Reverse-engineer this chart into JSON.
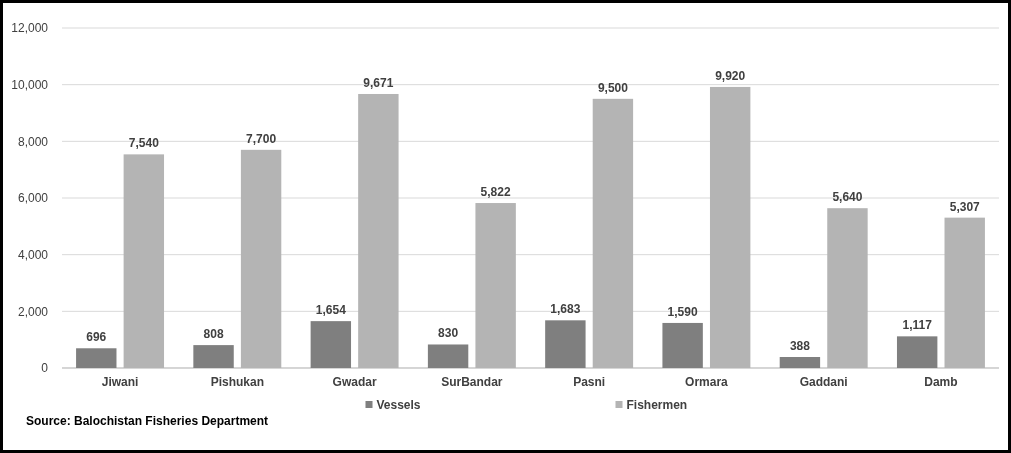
{
  "chart_data": {
    "type": "bar",
    "categories": [
      "Jiwani",
      "Pishukan",
      "Gwadar",
      "SurBandar",
      "Pasni",
      "Ormara",
      "Gaddani",
      "Damb"
    ],
    "series": [
      {
        "name": "Vessels",
        "color": "#7f7f7f",
        "values": [
          696,
          808,
          1654,
          830,
          1683,
          1590,
          388,
          1117
        ],
        "value_labels": [
          "696",
          "808",
          "1,654",
          "830",
          "1,683",
          "1,590",
          "388",
          "1,117"
        ]
      },
      {
        "name": "Fishermen",
        "color": "#b4b4b4",
        "values": [
          7540,
          7700,
          9671,
          5822,
          9500,
          9920,
          5640,
          5307
        ],
        "value_labels": [
          "7,540",
          "7,700",
          "9,671",
          "5,822",
          "9,500",
          "9,920",
          "5,640",
          "5,307"
        ]
      }
    ],
    "ylim": [
      0,
      12000
    ],
    "yticks": [
      {
        "value": 0,
        "label": "0"
      },
      {
        "value": 2000,
        "label": "2,000"
      },
      {
        "value": 4000,
        "label": "4,000"
      },
      {
        "value": 6000,
        "label": "6,000"
      },
      {
        "value": 8000,
        "label": "8,000"
      },
      {
        "value": 10000,
        "label": "10,000"
      },
      {
        "value": 12000,
        "label": "12,000"
      }
    ],
    "grid": "y",
    "legend": "bottom",
    "annotations": [
      "Source: Balochistan  Fisheries Department"
    ]
  }
}
